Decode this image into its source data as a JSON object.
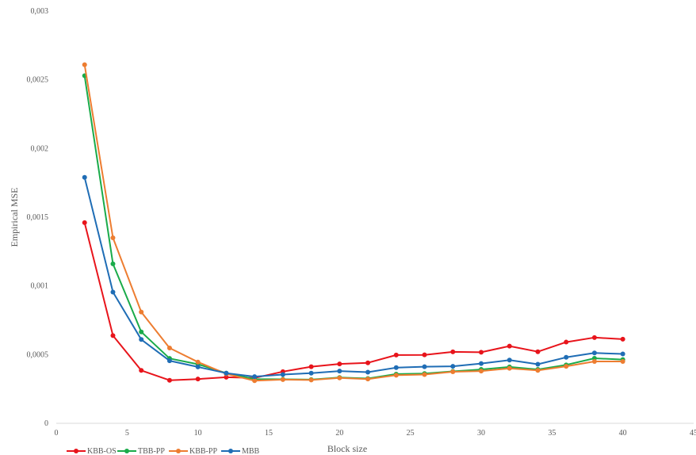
{
  "chart_data": {
    "type": "line",
    "xlabel": "Block size",
    "ylabel": "Empirical MSE",
    "xlim": [
      0,
      45
    ],
    "ylim": [
      0,
      0.003
    ],
    "x_ticks": [
      0,
      5,
      10,
      15,
      20,
      25,
      30,
      35,
      40,
      45
    ],
    "x_tick_labels": [
      "0",
      "5",
      "10",
      "15",
      "20",
      "25",
      "30",
      "35",
      "40",
      "45"
    ],
    "y_ticks": [
      0,
      0.0005,
      0.001,
      0.0015,
      0.002,
      0.0025,
      0.003
    ],
    "y_tick_labels": [
      "0",
      "0,0005",
      "0,001",
      "0,0015",
      "0,002",
      "0,0025",
      "0,003"
    ],
    "grid": false,
    "legend_position": "bottom-left",
    "x": [
      2,
      4,
      6,
      8,
      10,
      12,
      14,
      16,
      18,
      20,
      22,
      24,
      26,
      28,
      30,
      32,
      34,
      36,
      38,
      40
    ],
    "series": [
      {
        "name": "KBB-OS",
        "color": "#e8141b",
        "values": [
          0.00146,
          0.000638,
          0.000385,
          0.000313,
          0.000322,
          0.000335,
          0.00033,
          0.000376,
          0.000412,
          0.000432,
          0.00044,
          0.000497,
          0.000498,
          0.00052,
          0.000517,
          0.000562,
          0.000521,
          0.000591,
          0.000624,
          0.000612
        ]
      },
      {
        "name": "TBB-PP",
        "color": "#1aab4a",
        "values": [
          0.00253,
          0.00116,
          0.000665,
          0.000472,
          0.00043,
          0.000365,
          0.000322,
          0.00032,
          0.000318,
          0.000333,
          0.000326,
          0.000358,
          0.000362,
          0.000378,
          0.000392,
          0.00041,
          0.000392,
          0.000425,
          0.000473,
          0.000464
        ]
      },
      {
        "name": "KBB-PP",
        "color": "#ed7d31",
        "values": [
          0.00261,
          0.00135,
          0.00081,
          0.000548,
          0.000446,
          0.00036,
          0.00031,
          0.000318,
          0.000315,
          0.00033,
          0.000322,
          0.00035,
          0.000355,
          0.000375,
          0.00038,
          0.0004,
          0.000385,
          0.000415,
          0.00045,
          0.00045
        ]
      },
      {
        "name": "MBB",
        "color": "#1f6db5",
        "values": [
          0.00179,
          0.000955,
          0.00061,
          0.000455,
          0.00041,
          0.000365,
          0.00034,
          0.000355,
          0.000365,
          0.00038,
          0.000372,
          0.000405,
          0.000412,
          0.000415,
          0.000435,
          0.00046,
          0.00043,
          0.00048,
          0.000512,
          0.000505
        ]
      }
    ]
  }
}
